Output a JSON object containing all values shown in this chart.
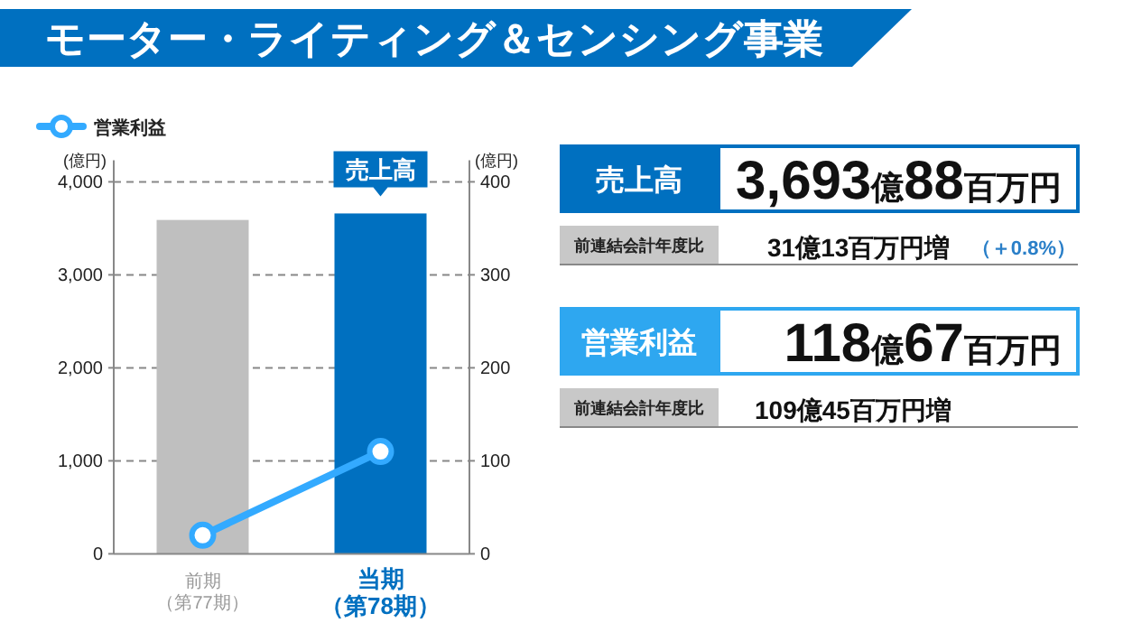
{
  "chart_data": [
    {
      "type": "bar",
      "title": "モーター・ライティング＆センシング事業",
      "ylabel": "(億円)",
      "y2label": "(億円)",
      "categories": [
        "前期（第77期）",
        "当期（第78期）"
      ],
      "series": [
        {
          "type": "bar",
          "colors": [
            "#bfbfbf",
            "#0070c0"
          ],
          "values": [
            3590,
            3660
          ]
        },
        {
          "type": "line",
          "name": "営業利益",
          "color": "#33aaff",
          "axis": "y2",
          "marker": "circle",
          "values": [
            20,
            110
          ]
        }
      ],
      "ylim": [
        0,
        4000
      ],
      "yticks": [
        {
          "value": 0,
          "label": "0"
        },
        {
          "value": 1000,
          "label": "1,000"
        },
        {
          "value": 2000,
          "label": "2,000"
        },
        {
          "value": 3000,
          "label": "3,000"
        },
        {
          "value": 4000,
          "label": "4,000"
        }
      ],
      "y2lim": [
        0,
        400
      ],
      "y2ticks": [
        0,
        100,
        200,
        300,
        400
      ],
      "grid": "y",
      "legend": "top left",
      "annotations": [
        "売上高"
      ]
    },
    {
      "type": "other",
      "annotations": [
        "売上高",
        "3,693億88百万円",
        "前連結会計年度比",
        "31億13百万円増",
        "（＋0.8%）",
        "営業利益",
        "118億67百万円",
        "前連結会計年度比",
        "109億45百万円増"
      ]
    }
  ]
}
